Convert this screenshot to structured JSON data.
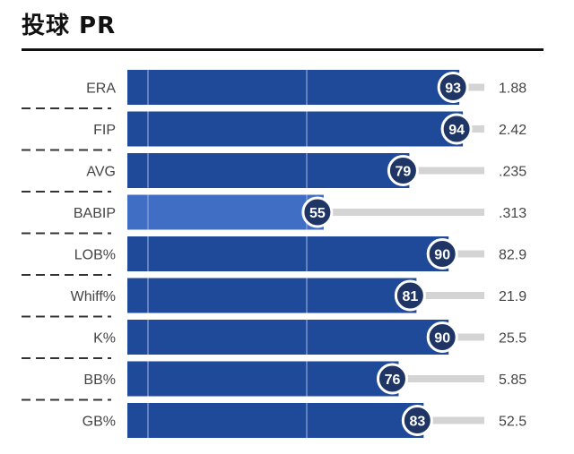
{
  "title": "投球 PR",
  "colors": {
    "bar_strong": "#1f4a9a",
    "bar_weak": "#3f6ec4",
    "badge": "#1f3566",
    "track": "#d4d4d4",
    "title_rule": "#111111"
  },
  "chart_data": {
    "type": "bar",
    "orientation": "horizontal",
    "title": "投球 PR",
    "xlim": [
      0,
      100
    ],
    "grid": true,
    "categories": [
      "ERA",
      "FIP",
      "AVG",
      "BABIP",
      "LOB%",
      "Whiff%",
      "K%",
      "BB%",
      "GB%"
    ],
    "series": [
      {
        "values": [
          93,
          94,
          79,
          55,
          90,
          81,
          90,
          76,
          83
        ]
      }
    ],
    "stat_values": [
      "1.88",
      "2.42",
      ".235",
      ".313",
      "82.9",
      "21.9",
      "25.5",
      "5.85",
      "52.5"
    ]
  }
}
